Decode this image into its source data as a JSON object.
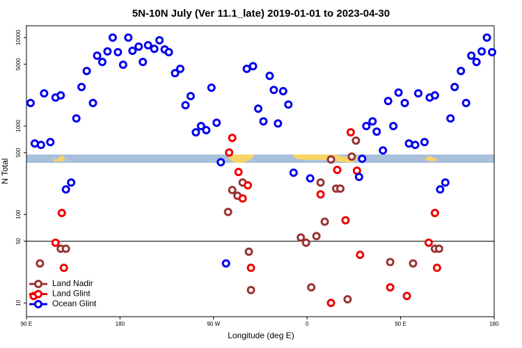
{
  "chart_data": {
    "type": "scatter",
    "title": "5N-10N July (Ver 11.1_late)   2019-01-01 to 2023-04-30",
    "x_label": "Longitude (deg E)",
    "y_label": "N Total",
    "log_y": true,
    "legend": "lower left",
    "hline": 50,
    "xlim": [
      90,
      540
    ],
    "ylim": [
      7,
      13600
    ],
    "xticks": [
      {
        "value": 90,
        "label": "90 E"
      },
      180,
      {
        "value": 270,
        "label": "90 W"
      },
      {
        "value": 360,
        "label": "0"
      },
      {
        "value": 450,
        "label": "90 E"
      },
      {
        "value": 540,
        "label": "180"
      }
    ],
    "yticks": [
      10,
      50,
      100,
      500,
      1000,
      5000,
      10000
    ],
    "series": [
      {
        "name": "Land Nadir",
        "color": "#993333",
        "x": [
          103,
          123,
          128,
          284,
          288,
          293,
          298,
          304,
          306,
          354,
          359,
          364,
          369,
          373,
          377,
          383,
          388,
          392,
          399,
          403,
          407,
          440,
          462,
          483,
          487
        ],
        "values": [
          28,
          41,
          41,
          107,
          189,
          163,
          230,
          38,
          14,
          55,
          48,
          15,
          57,
          230,
          83,
          419,
          196,
          196,
          11,
          451,
          684,
          29,
          28,
          41,
          41
        ]
      },
      {
        "name": "Land Glint",
        "color": "#ee0000",
        "x": [
          97,
          118,
          124,
          126,
          285,
          288,
          294,
          298,
          303,
          306,
          383,
          373,
          389,
          397,
          402,
          408,
          411,
          440,
          456,
          477,
          483,
          485
        ],
        "values": [
          12,
          48,
          104,
          25,
          502,
          735,
          302,
          152,
          214,
          25,
          10,
          169,
          319,
          86,
          849,
          313,
          35,
          15,
          12,
          48,
          104,
          25
        ]
      },
      {
        "name": "Ocean Glint",
        "color": "#0000ee",
        "x": [
          94,
          98,
          104,
          107,
          113,
          118,
          123,
          128,
          133,
          138,
          143,
          148,
          154,
          158,
          163,
          168,
          173,
          178,
          183,
          188,
          192,
          198,
          202,
          207,
          213,
          218,
          223,
          227,
          233,
          238,
          243,
          248,
          253,
          258,
          263,
          268,
          273,
          277,
          282,
          302,
          308,
          313,
          318,
          324,
          328,
          332,
          337,
          342,
          347,
          363,
          410,
          413,
          417,
          423,
          427,
          433,
          438,
          443,
          448,
          454,
          458,
          464,
          467,
          473,
          478,
          483,
          488,
          493,
          498,
          502,
          508,
          513,
          518,
          523,
          528,
          533,
          538
        ],
        "values": [
          1820,
          635,
          612,
          2340,
          659,
          2100,
          2220,
          192,
          230,
          1220,
          2760,
          4190,
          1820,
          6240,
          5300,
          6970,
          10000,
          6840,
          4930,
          10000,
          7080,
          7900,
          5300,
          8190,
          7470,
          9310,
          7350,
          6840,
          3960,
          4430,
          1720,
          2180,
          849,
          1000,
          898,
          2710,
          1090,
          390,
          28,
          4430,
          4750,
          1570,
          1130,
          3690,
          2560,
          1070,
          2480,
          1750,
          297,
          256,
          266,
          427,
          1000,
          1130,
          865,
          530,
          1920,
          1000,
          2390,
          1820,
          635,
          612,
          2340,
          659,
          2100,
          2220,
          192,
          230,
          1220,
          2760,
          4190,
          1820,
          6240,
          5300,
          6970,
          10000,
          6840
        ]
      }
    ]
  }
}
